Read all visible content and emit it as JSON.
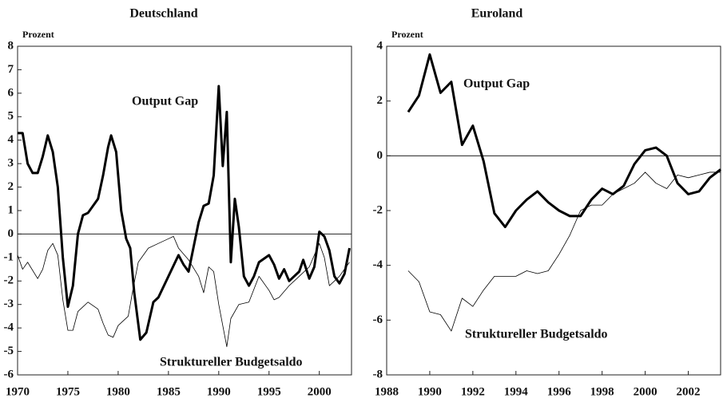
{
  "chart_data": [
    {
      "type": "line",
      "title": "Deutschland",
      "y_label": "Prozent",
      "annotations": [
        "Output Gap",
        "Struktureller Budgetsaldo"
      ],
      "xlim": [
        1970,
        2003.2
      ],
      "ylim": [
        -6,
        8
      ],
      "xticks": [
        1970,
        1975,
        1980,
        1985,
        1990,
        1995,
        2000
      ],
      "yticks": [
        -6,
        -5,
        -4,
        -3,
        -2,
        -1,
        0,
        1,
        2,
        3,
        4,
        5,
        6,
        7,
        8
      ],
      "grid": false,
      "series": [
        {
          "name": "Output Gap",
          "color": "#000000",
          "width": 3,
          "x": [
            1970,
            1970.5,
            1971,
            1971.5,
            1972,
            1972.5,
            1973,
            1973.5,
            1974,
            1974.5,
            1975,
            1975.5,
            1976,
            1976.5,
            1977,
            1978,
            1978.5,
            1979,
            1979.3,
            1979.8,
            1980.3,
            1980.8,
            1981.2,
            1981.6,
            1982.2,
            1982.8,
            1983.5,
            1984,
            1985,
            1986,
            1986.5,
            1987,
            1988,
            1988.5,
            1989,
            1989.5,
            1990,
            1990.4,
            1990.8,
            1991.2,
            1991.6,
            1992,
            1992.5,
            1993,
            1993.5,
            1994,
            1995,
            1995.5,
            1996,
            1996.5,
            1997,
            1998,
            1998.4,
            1999,
            1999.5,
            2000,
            2000.5,
            2001,
            2001.5,
            2002,
            2002.5,
            2003
          ],
          "values": [
            4.3,
            4.3,
            3.0,
            2.6,
            2.6,
            3.3,
            4.2,
            3.5,
            2.0,
            -1.0,
            -3.1,
            -2.2,
            0.0,
            0.8,
            0.9,
            1.5,
            2.5,
            3.7,
            4.2,
            3.5,
            1.0,
            -0.2,
            -0.6,
            -2.5,
            -4.5,
            -4.2,
            -2.9,
            -2.7,
            -1.8,
            -0.9,
            -1.3,
            -1.6,
            0.5,
            1.2,
            1.3,
            2.5,
            6.3,
            2.9,
            5.2,
            -1.2,
            1.5,
            0.3,
            -1.8,
            -2.2,
            -1.8,
            -1.2,
            -0.9,
            -1.3,
            -1.9,
            -1.5,
            -2.0,
            -1.6,
            -1.1,
            -1.9,
            -1.4,
            0.1,
            -0.1,
            -0.7,
            -1.8,
            -2.1,
            -1.7,
            -0.6
          ]
        },
        {
          "name": "Struktureller Budgetsaldo",
          "color": "#000000",
          "width": 0.8,
          "x": [
            1970,
            1970.5,
            1971,
            1972,
            1972.5,
            1973,
            1973.5,
            1974,
            1974.5,
            1975,
            1975.5,
            1976,
            1977,
            1978,
            1978.5,
            1979,
            1979.5,
            1980,
            1981,
            1981.5,
            1982,
            1983,
            1984,
            1985,
            1985.5,
            1986,
            1987,
            1988,
            1988.5,
            1989,
            1989.5,
            1990,
            1990.8,
            1991.2,
            1992,
            1993,
            1994,
            1995,
            1995.5,
            1996,
            1997,
            1998,
            1999,
            2000,
            2000.5,
            2001,
            2001.5,
            2002,
            2003
          ],
          "values": [
            -0.9,
            -1.5,
            -1.2,
            -1.9,
            -1.5,
            -0.7,
            -0.4,
            -0.9,
            -2.8,
            -4.1,
            -4.1,
            -3.3,
            -2.9,
            -3.2,
            -3.8,
            -4.3,
            -4.4,
            -3.9,
            -3.5,
            -2.3,
            -1.2,
            -0.6,
            -0.4,
            -0.2,
            -0.1,
            -0.6,
            -1.1,
            -1.8,
            -2.5,
            -1.4,
            -1.6,
            -3.0,
            -4.8,
            -3.6,
            -3.0,
            -2.9,
            -1.8,
            -2.4,
            -2.8,
            -2.7,
            -2.2,
            -1.8,
            -1.4,
            -0.4,
            -1.0,
            -2.2,
            -2.0,
            -1.8,
            -1.2
          ]
        }
      ]
    },
    {
      "type": "line",
      "title": "Euroland",
      "y_label": "Prozent",
      "annotations": [
        "Output Gap",
        "Struktureller Budgetsaldo"
      ],
      "xlim": [
        1988,
        2003.5
      ],
      "ylim": [
        -8,
        4
      ],
      "xticks": [
        1988,
        1990,
        1992,
        1994,
        1996,
        1998,
        2000,
        2002
      ],
      "yticks": [
        -8,
        -6,
        -4,
        -2,
        0,
        2,
        4
      ],
      "grid": false,
      "series": [
        {
          "name": "Output Gap",
          "color": "#000000",
          "width": 3,
          "x": [
            1989,
            1989.5,
            1990,
            1990.5,
            1991,
            1991.5,
            1992,
            1992.5,
            1993,
            1993.5,
            1994,
            1994.5,
            1995,
            1995.5,
            1996,
            1996.5,
            1997,
            1997.5,
            1998,
            1998.5,
            1999,
            1999.5,
            2000,
            2000.5,
            2001,
            2001.5,
            2002,
            2002.5,
            2003,
            2003.5
          ],
          "values": [
            1.6,
            2.2,
            3.7,
            2.3,
            2.7,
            0.4,
            1.1,
            -0.2,
            -2.1,
            -2.6,
            -2.0,
            -1.6,
            -1.3,
            -1.7,
            -2.0,
            -2.2,
            -2.2,
            -1.6,
            -1.2,
            -1.4,
            -1.1,
            -0.3,
            0.2,
            0.3,
            0.0,
            -1.0,
            -1.4,
            -1.3,
            -0.8,
            -0.5
          ]
        },
        {
          "name": "Struktureller Budgetsaldo",
          "color": "#000000",
          "width": 0.8,
          "x": [
            1989,
            1989.5,
            1990,
            1990.5,
            1991,
            1991.5,
            1992,
            1992.5,
            1993,
            1994,
            1994.5,
            1995,
            1995.5,
            1996,
            1996.5,
            1997,
            1997.5,
            1998,
            1998.5,
            1999,
            1999.5,
            2000,
            2000.5,
            2001,
            2001.5,
            2002,
            2002.5,
            2003,
            2003.5
          ],
          "values": [
            -4.2,
            -4.6,
            -5.7,
            -5.8,
            -6.4,
            -5.2,
            -5.5,
            -4.9,
            -4.4,
            -4.4,
            -4.2,
            -4.3,
            -4.2,
            -3.6,
            -2.9,
            -2.0,
            -1.8,
            -1.8,
            -1.4,
            -1.2,
            -1.0,
            -0.6,
            -1.0,
            -1.2,
            -0.7,
            -0.8,
            -0.7,
            -0.6,
            -0.6
          ]
        }
      ]
    }
  ]
}
